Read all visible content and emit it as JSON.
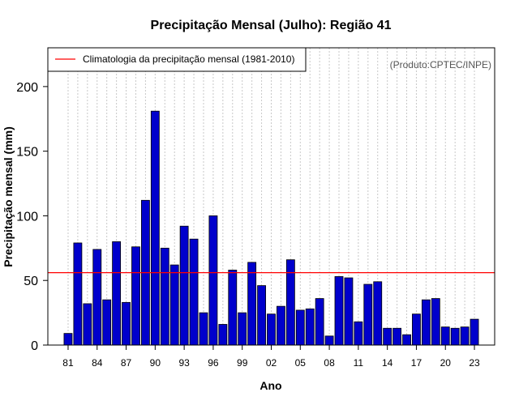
{
  "chart_data": {
    "type": "bar",
    "title": "Precipitação Mensal (Julho): Região 41",
    "xlabel": "Ano",
    "ylabel": "Precipitação mensal (mm)",
    "credit": "(Produto:CPTEC/INPE)",
    "ylim": [
      0,
      230
    ],
    "yticks": [
      0,
      50,
      100,
      150,
      200
    ],
    "xtick_labels": [
      "81",
      "84",
      "87",
      "90",
      "93",
      "96",
      "99",
      "02",
      "05",
      "08",
      "11",
      "14",
      "17",
      "20",
      "23"
    ],
    "xtick_positions": [
      1981,
      1984,
      1987,
      1990,
      1993,
      1996,
      1999,
      2002,
      2005,
      2008,
      2011,
      2014,
      2017,
      2020,
      2023
    ],
    "x": [
      1981,
      1982,
      1983,
      1984,
      1985,
      1986,
      1987,
      1988,
      1989,
      1990,
      1991,
      1992,
      1993,
      1994,
      1995,
      1996,
      1997,
      1998,
      1999,
      2000,
      2001,
      2002,
      2003,
      2004,
      2005,
      2006,
      2007,
      2008,
      2009,
      2010,
      2011,
      2012,
      2013,
      2014,
      2015,
      2016,
      2017,
      2018,
      2019,
      2020,
      2021,
      2022,
      2023
    ],
    "values": [
      9,
      79,
      32,
      74,
      35,
      80,
      33,
      76,
      112,
      181,
      75,
      62,
      92,
      82,
      25,
      100,
      16,
      58,
      25,
      64,
      46,
      24,
      30,
      66,
      27,
      28,
      36,
      7,
      53,
      52,
      18,
      47,
      49,
      13,
      13,
      8,
      24,
      35,
      36,
      14,
      13,
      14,
      20
    ],
    "grid": "vertical dotted",
    "colors": {
      "bar": "#0000CC",
      "bar_edge": "#000000",
      "climatology": "#FF0000",
      "grid": "#C8C8C8"
    },
    "climatology": {
      "label": "Climatologia da precipitação mensal (1981-2010)",
      "value": 56
    },
    "legend_position": "top-left"
  }
}
